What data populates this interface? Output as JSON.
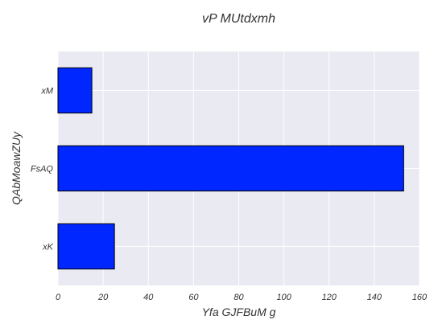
{
  "chart_data": {
    "type": "bar",
    "orientation": "horizontal",
    "title": "vP MUtdxmh",
    "xlabel": "Yfa GJFBuM  g",
    "ylabel": "QAbMoawZUy",
    "categories": [
      "xK",
      "FsAQ",
      "xM"
    ],
    "values": [
      25,
      153,
      15
    ],
    "xlim": [
      0,
      160
    ],
    "xticks": [
      "0",
      "20",
      "40",
      "60",
      "80",
      "100",
      "120",
      "140",
      "160"
    ],
    "grid": true,
    "bar_color": "#0027ff",
    "background_color": "#eaeaf2"
  }
}
